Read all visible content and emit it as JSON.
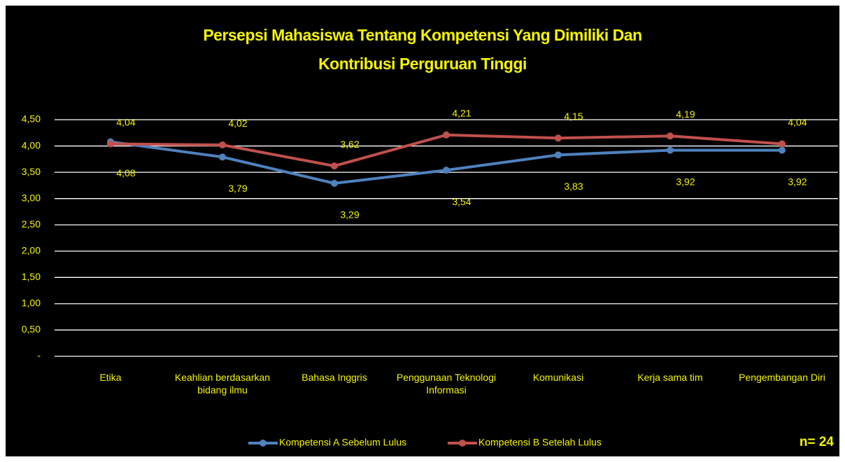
{
  "chart_data": {
    "type": "line",
    "title": "Persepsi Mahasiswa Tentang Kompetensi Yang Dimiliki Dan Kontribusi Perguruan Tinggi",
    "categories": [
      "Etika",
      "Keahlian berdasarkan bidang ilmu",
      "Bahasa Inggris",
      "Penggunaan Teknologi Informasi",
      "Komunikasi",
      "Kerja sama tim",
      "Pengembangan Diri"
    ],
    "series": [
      {
        "name": "Kompetensi A Sebelum Lulus",
        "color": "#4f81bd",
        "values": [
          4.08,
          3.79,
          3.29,
          3.54,
          3.83,
          3.92,
          3.92
        ],
        "value_labels": [
          "4,08",
          "3,79",
          "3,29",
          "3,54",
          "3,83",
          "3,92",
          "3,92"
        ]
      },
      {
        "name": "Kompetensi B Setelah Lulus",
        "color": "#c0504d",
        "values": [
          4.04,
          4.02,
          3.62,
          4.21,
          4.15,
          4.19,
          4.04
        ],
        "value_labels": [
          "4,04",
          "4,02",
          "3,62",
          "4,21",
          "4,15",
          "4,19",
          "4,04"
        ]
      }
    ],
    "ylim": [
      0,
      4.5
    ],
    "yticks": [
      {
        "value": 0,
        "label": "-"
      },
      {
        "value": 0.5,
        "label": "0,50"
      },
      {
        "value": 1,
        "label": "1,00"
      },
      {
        "value": 1.5,
        "label": "1,50"
      },
      {
        "value": 2,
        "label": "2,00"
      },
      {
        "value": 2.5,
        "label": "2,50"
      },
      {
        "value": 3,
        "label": "3,00"
      },
      {
        "value": 3.5,
        "label": "3,50"
      },
      {
        "value": 4,
        "label": "4,00"
      },
      {
        "value": 4.5,
        "label": "4,50"
      }
    ],
    "grid": true,
    "legend": "bottom",
    "annotation": "n= 24"
  }
}
